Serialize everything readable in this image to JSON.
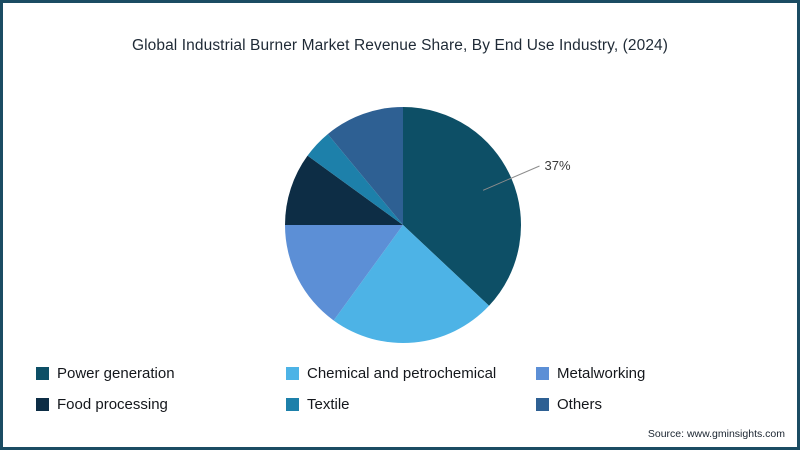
{
  "chart_data": {
    "type": "pie",
    "title": "Global Industrial Burner Market Revenue Share, By End Use Industry, (2024)",
    "categories": [
      "Power generation",
      "Chemical and petrochemical",
      "Metalworking",
      "Food processing",
      "Textile",
      "Others"
    ],
    "values": [
      37,
      23,
      15,
      10,
      4,
      11
    ],
    "colors": [
      "#0d4f66",
      "#4db3e6",
      "#5c8fd6",
      "#0d2d45",
      "#1d80aa",
      "#2e6093"
    ],
    "start_angle_deg": -90,
    "direction": "clockwise",
    "data_labels": [
      {
        "index": 0,
        "text": "37%"
      }
    ],
    "legend_position": "bottom",
    "units": "percent"
  },
  "source": {
    "text": "Source: www.gminsights.com"
  }
}
